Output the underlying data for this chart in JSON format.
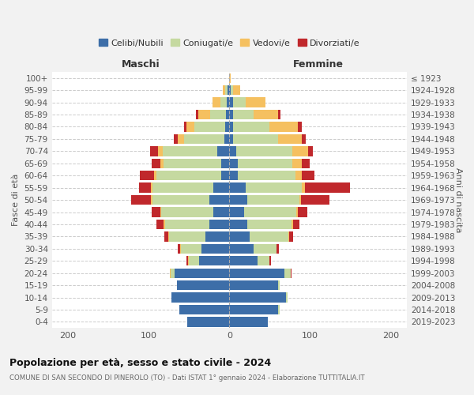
{
  "age_groups": [
    "0-4",
    "5-9",
    "10-14",
    "15-19",
    "20-24",
    "25-29",
    "30-34",
    "35-39",
    "40-44",
    "45-49",
    "50-54",
    "55-59",
    "60-64",
    "65-69",
    "70-74",
    "75-79",
    "80-84",
    "85-89",
    "90-94",
    "95-99",
    "100+"
  ],
  "birth_years": [
    "2019-2023",
    "2014-2018",
    "2009-2013",
    "2004-2008",
    "1999-2003",
    "1994-1998",
    "1989-1993",
    "1984-1988",
    "1979-1983",
    "1974-1978",
    "1969-1973",
    "1964-1968",
    "1959-1963",
    "1954-1958",
    "1949-1953",
    "1944-1948",
    "1939-1943",
    "1934-1938",
    "1929-1933",
    "1924-1928",
    "≤ 1923"
  ],
  "male_celibi": [
    52,
    62,
    72,
    65,
    68,
    38,
    35,
    30,
    25,
    20,
    25,
    20,
    10,
    10,
    15,
    6,
    5,
    4,
    3,
    2,
    0
  ],
  "male_coniugati": [
    0,
    0,
    0,
    0,
    5,
    12,
    25,
    45,
    55,
    65,
    70,
    75,
    80,
    72,
    68,
    50,
    38,
    20,
    8,
    3,
    0
  ],
  "male_vedovi": [
    0,
    0,
    0,
    0,
    1,
    1,
    1,
    1,
    2,
    1,
    2,
    2,
    3,
    4,
    5,
    8,
    10,
    15,
    10,
    3,
    0
  ],
  "male_divorziati": [
    0,
    0,
    0,
    0,
    0,
    2,
    3,
    5,
    8,
    10,
    25,
    15,
    18,
    10,
    10,
    5,
    3,
    2,
    0,
    0,
    0
  ],
  "female_celibi": [
    48,
    60,
    70,
    60,
    68,
    35,
    30,
    25,
    22,
    18,
    22,
    20,
    10,
    10,
    8,
    5,
    5,
    5,
    5,
    2,
    0
  ],
  "female_coniugati": [
    0,
    2,
    2,
    2,
    8,
    15,
    28,
    48,
    55,
    65,
    65,
    70,
    72,
    68,
    70,
    55,
    45,
    25,
    15,
    3,
    0
  ],
  "female_vedovi": [
    0,
    0,
    0,
    0,
    0,
    0,
    0,
    1,
    2,
    2,
    2,
    4,
    8,
    12,
    20,
    30,
    35,
    30,
    25,
    8,
    2
  ],
  "female_divorziati": [
    0,
    0,
    0,
    0,
    1,
    2,
    3,
    5,
    8,
    12,
    35,
    55,
    15,
    10,
    5,
    5,
    5,
    3,
    0,
    0,
    0
  ],
  "colors": {
    "celibi": "#3d6ea8",
    "coniugati": "#c5d9a0",
    "vedovi": "#f5c060",
    "divorziati": "#c0282c"
  },
  "xlim": 220,
  "title": "Popolazione per età, sesso e stato civile - 2024",
  "subtitle": "COMUNE DI SAN SECONDO DI PINEROLO (TO) - Dati ISTAT 1° gennaio 2024 - Elaborazione TUTTITALIA.IT",
  "ylabel_left": "Fasce di età",
  "ylabel_right": "Anni di nascita",
  "xlabel_left": "Maschi",
  "xlabel_right": "Femmine",
  "bg_color": "#f2f2f2",
  "plot_bg": "#ffffff"
}
